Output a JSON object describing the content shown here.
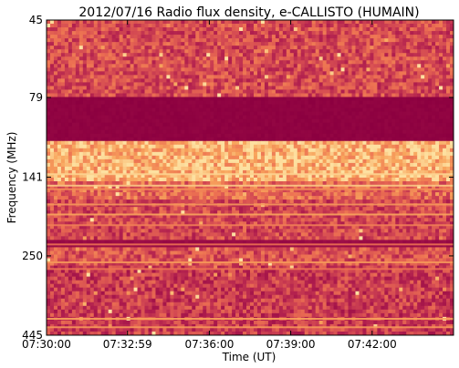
{
  "chart_data": {
    "type": "heatmap",
    "title": "2012/07/16  Radio flux density, e-CALLISTO (HUMAIN)",
    "xlabel": "Time (UT)",
    "ylabel": "Frequency (MHz)",
    "x_ticks": [
      "07:30:00",
      "07:32:59",
      "07:36:00",
      "07:39:00",
      "07:42:00"
    ],
    "x_tick_seconds": [
      0,
      179,
      360,
      540,
      720
    ],
    "x_range_seconds": [
      0,
      900
    ],
    "y_ticks": [
      "45",
      "79",
      "141",
      "250",
      "445"
    ],
    "y_tick_values": [
      45,
      79,
      141,
      250,
      445
    ],
    "y_range": [
      45,
      445
    ],
    "y_inverted": true,
    "y_scale": "log",
    "grid": false,
    "colormap": [
      "#8c0040",
      "#b01e4e",
      "#d24752",
      "#ec7052",
      "#f8a45c",
      "#fde0a0"
    ],
    "bands": [
      {
        "from": 45,
        "to": 79,
        "level": 0.42
      },
      {
        "from": 79,
        "to": 107,
        "level": 0.02
      },
      {
        "from": 107,
        "to": 145,
        "level": 0.85
      },
      {
        "from": 145,
        "to": 165,
        "level": 0.55
      },
      {
        "from": 165,
        "to": 220,
        "level": 0.4
      },
      {
        "from": 220,
        "to": 236,
        "level": 0.08
      },
      {
        "from": 236,
        "to": 265,
        "level": 0.45
      },
      {
        "from": 265,
        "to": 445,
        "level": 0.35
      }
    ],
    "lines": [
      {
        "freq": 138,
        "level": 0.95
      },
      {
        "freq": 150,
        "level": 0.92
      },
      {
        "freq": 154,
        "level": 0.7
      },
      {
        "freq": 172,
        "level": 0.75
      },
      {
        "freq": 185,
        "level": 0.8
      },
      {
        "freq": 200,
        "level": 0.65
      },
      {
        "freq": 230,
        "level": 0.6
      },
      {
        "freq": 262,
        "level": 0.75
      },
      {
        "freq": 275,
        "level": 0.6
      },
      {
        "freq": 395,
        "level": 0.8
      },
      {
        "freq": 420,
        "level": 0.75
      }
    ]
  }
}
